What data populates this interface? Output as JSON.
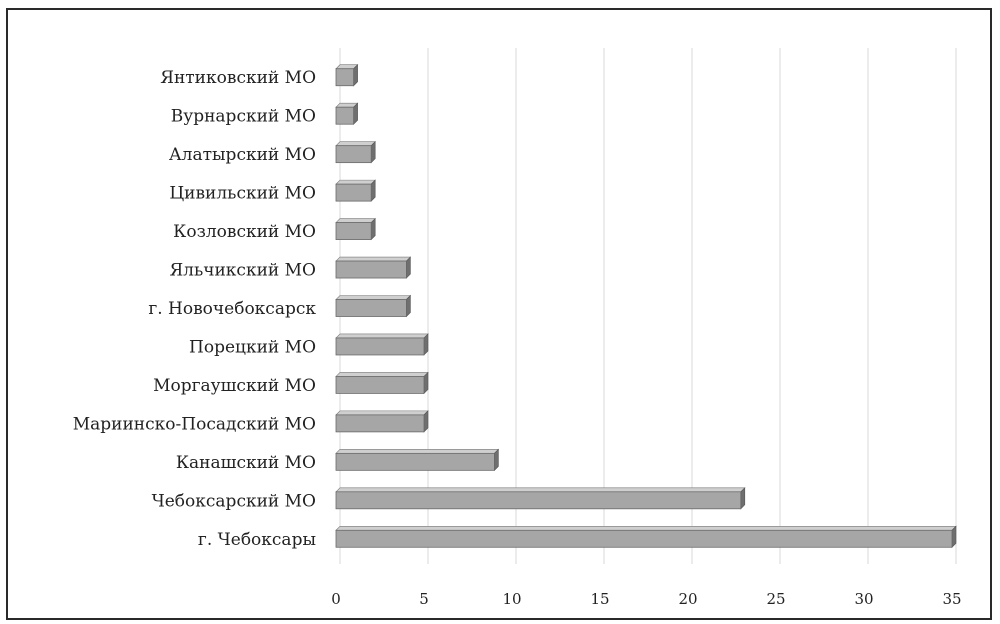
{
  "chart_data": {
    "type": "bar",
    "orientation": "horizontal",
    "categories": [
      "Янтиковский МО",
      "Вурнарский МО",
      "Алатырский МО",
      "Цивильский МО",
      "Козловский МО",
      "Яльчикский МО",
      "г. Новочебоксарск",
      "Порецкий МО",
      "Моргаушский МО",
      "Мариинско-Посадский МО",
      "Канашский МО",
      "Чебоксарский МО",
      "г. Чебоксары"
    ],
    "values": [
      1,
      1,
      2,
      2,
      2,
      4,
      4,
      5,
      5,
      5,
      9,
      23,
      35
    ],
    "xlim": [
      0,
      35
    ],
    "xticks": [
      0,
      5,
      10,
      15,
      20,
      25,
      30,
      35
    ],
    "grid": "vertical",
    "legend": "none",
    "colors": {
      "bar": "#a6a6a6",
      "bar_top": "#cfcfcf",
      "bar_side": "#6f6f6f",
      "grid": "#d9d9d9"
    }
  }
}
